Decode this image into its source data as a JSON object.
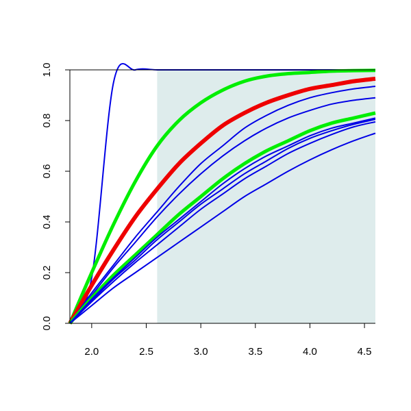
{
  "chart_data": {
    "type": "line",
    "title": "",
    "xlabel": "",
    "ylabel": "",
    "xlim": [
      1.8,
      4.6
    ],
    "ylim": [
      0,
      1
    ],
    "x_ticks": [
      2.0,
      2.5,
      3.0,
      3.5,
      4.0,
      4.5
    ],
    "x_tick_labels": [
      "2.0",
      "2.5",
      "3.0",
      "3.5",
      "4.0",
      "4.5"
    ],
    "y_ticks": [
      0,
      0.2,
      0.4,
      0.6,
      0.8,
      1.0
    ],
    "y_tick_labels": [
      "0.0",
      "0.2",
      "0.4",
      "0.6",
      "0.8",
      "1.0"
    ],
    "grid": false,
    "legend": "none",
    "shaded_region": {
      "x_from": 2.6,
      "x_to": 4.6,
      "color": "#deecec"
    },
    "x": [
      1.8,
      2.0,
      2.2,
      2.4,
      2.6,
      2.8,
      3.0,
      3.2,
      3.4,
      3.6,
      3.8,
      4.0,
      4.2,
      4.4,
      4.6
    ],
    "series": [
      {
        "color": "#0000e6",
        "emphasis": "thin",
        "values": [
          0.0,
          0.18,
          0.95,
          1.0,
          1.0,
          1.0,
          1.0,
          1.0,
          1.0,
          1.0,
          1.0,
          1.0,
          1.0,
          1.0,
          1.0
        ]
      },
      {
        "color": "#00ee00",
        "emphasis": "thick",
        "values": [
          0.0,
          0.2,
          0.39,
          0.56,
          0.7,
          0.8,
          0.87,
          0.92,
          0.955,
          0.975,
          0.985,
          0.99,
          0.995,
          0.997,
          0.998
        ]
      },
      {
        "color": "#ee0000",
        "emphasis": "thickest",
        "values": [
          0.0,
          0.15,
          0.29,
          0.42,
          0.53,
          0.63,
          0.71,
          0.78,
          0.83,
          0.87,
          0.9,
          0.925,
          0.94,
          0.955,
          0.965
        ]
      },
      {
        "color": "#0000e6",
        "emphasis": "thin",
        "values": [
          0.0,
          0.12,
          0.23,
          0.34,
          0.44,
          0.54,
          0.63,
          0.7,
          0.77,
          0.82,
          0.86,
          0.89,
          0.91,
          0.925,
          0.935
        ]
      },
      {
        "color": "#0000e6",
        "emphasis": "thin",
        "values": [
          0.0,
          0.11,
          0.22,
          0.32,
          0.42,
          0.51,
          0.59,
          0.66,
          0.72,
          0.77,
          0.81,
          0.84,
          0.865,
          0.88,
          0.89
        ]
      },
      {
        "color": "#00ee00",
        "emphasis": "thick",
        "values": [
          0.0,
          0.1,
          0.19,
          0.27,
          0.35,
          0.43,
          0.5,
          0.57,
          0.63,
          0.68,
          0.72,
          0.76,
          0.79,
          0.81,
          0.83
        ]
      },
      {
        "color": "#0000e6",
        "emphasis": "thin",
        "values": [
          0.0,
          0.095,
          0.18,
          0.26,
          0.34,
          0.41,
          0.48,
          0.55,
          0.61,
          0.66,
          0.7,
          0.74,
          0.77,
          0.79,
          0.81
        ]
      },
      {
        "color": "#0000e6",
        "emphasis": "thin",
        "values": [
          0.0,
          0.09,
          0.175,
          0.25,
          0.33,
          0.4,
          0.47,
          0.53,
          0.59,
          0.64,
          0.69,
          0.73,
          0.76,
          0.785,
          0.805
        ]
      },
      {
        "color": "#0000e6",
        "emphasis": "thin",
        "values": [
          0.0,
          0.085,
          0.165,
          0.24,
          0.31,
          0.38,
          0.45,
          0.51,
          0.57,
          0.62,
          0.67,
          0.71,
          0.745,
          0.775,
          0.795
        ]
      },
      {
        "color": "#0000e6",
        "emphasis": "thin",
        "values": [
          0.0,
          0.07,
          0.14,
          0.2,
          0.26,
          0.32,
          0.38,
          0.44,
          0.5,
          0.55,
          0.6,
          0.645,
          0.685,
          0.72,
          0.75
        ]
      }
    ]
  }
}
